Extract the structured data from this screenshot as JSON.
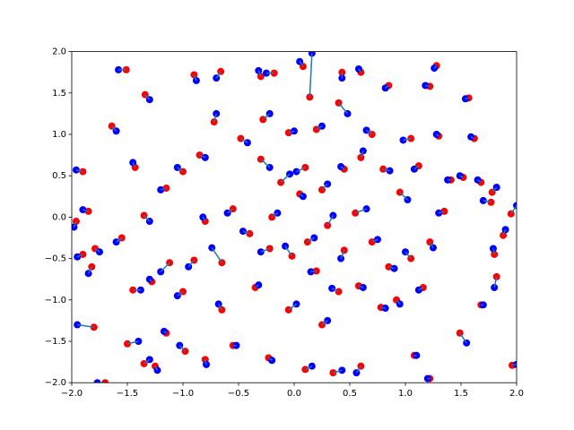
{
  "chart_data": {
    "type": "scatter",
    "xlim": [
      -2,
      2
    ],
    "ylim": [
      -2,
      2
    ],
    "xticks": [
      {
        "value": -2,
        "label": "−2.0"
      },
      {
        "value": -1.5,
        "label": "−1.5"
      },
      {
        "value": -1,
        "label": "−1.0"
      },
      {
        "value": -0.5,
        "label": "−0.5"
      },
      {
        "value": 0,
        "label": "0.0"
      },
      {
        "value": 0.5,
        "label": "0.5"
      },
      {
        "value": 1,
        "label": "1.0"
      },
      {
        "value": 1.5,
        "label": "1.5"
      },
      {
        "value": 2,
        "label": "2.0"
      }
    ],
    "yticks": [
      {
        "value": -2,
        "label": "−2.0"
      },
      {
        "value": -1.5,
        "label": "−1.5"
      },
      {
        "value": -1,
        "label": "−1.0"
      },
      {
        "value": -0.5,
        "label": "−0.5"
      },
      {
        "value": 0,
        "label": "0.0"
      },
      {
        "value": 0.5,
        "label": "0.5"
      },
      {
        "value": 1,
        "label": "1.0"
      },
      {
        "value": 1.5,
        "label": "1.5"
      },
      {
        "value": 2,
        "label": "2.0"
      }
    ],
    "grid": false,
    "pair_lines": true,
    "pair_line_color": "#1f77b4",
    "series": [
      {
        "color": "#ff0000",
        "x": [
          -1.51,
          -1.34,
          -0.9,
          -0.66,
          -0.3,
          -0.18,
          0.08,
          0.14,
          0.43,
          0.6,
          0.85,
          1.28,
          1.22,
          1.57,
          -1.64,
          -1.43,
          -1.9,
          -1.85,
          -1.96,
          -1.79,
          -1.9,
          -1.82,
          -1.8,
          -1.7,
          -1.5,
          -1.35,
          -1.25,
          -1.15,
          -0.98,
          -0.8,
          -0.55,
          -0.23,
          0.1,
          0.35,
          0.6,
          1.08,
          1.22,
          1.49,
          1.96,
          1.68,
          1.82,
          1.8,
          1.88,
          1.95,
          1.77,
          1.78,
          1.68,
          1.62,
          1.52,
          1.41,
          1.35,
          1.22,
          1.05,
          1.16,
          0.92,
          0.78,
          0.58,
          0.4,
          0.2,
          -0.02,
          -0.22,
          -0.4,
          -0.65,
          -0.9,
          -1.12,
          -1.28,
          -1.45,
          -1.55,
          -1.35,
          -1.15,
          -1.0,
          -0.85,
          -0.72,
          -0.48,
          -0.3,
          -0.12,
          0.05,
          0.25,
          0.45,
          0.6,
          0.8,
          0.95,
          1.05,
          1.3,
          0.7,
          0.4,
          0.2,
          -0.05,
          -0.28,
          0.1,
          0.3,
          0.55,
          0.7,
          0.45,
          -0.2,
          -0.55,
          -0.8,
          -0.35,
          -0.05,
          0.25,
          -0.65,
          -1.0,
          0.85,
          1.12,
          0.12
        ],
        "y": [
          1.78,
          1.48,
          1.72,
          1.76,
          1.7,
          1.74,
          1.82,
          1.45,
          1.75,
          1.75,
          1.59,
          1.83,
          1.58,
          1.44,
          1.1,
          0.6,
          0.55,
          0.07,
          -0.05,
          -0.38,
          -0.45,
          -0.6,
          -1.33,
          -2.0,
          -1.53,
          -1.77,
          -1.8,
          -1.4,
          -1.62,
          -1.72,
          -1.55,
          -1.7,
          -1.84,
          -1.88,
          -1.8,
          -1.67,
          -1.95,
          -1.4,
          -1.79,
          -1.06,
          -0.72,
          -0.45,
          -0.22,
          0.04,
          0.18,
          0.3,
          0.42,
          0.95,
          0.48,
          0.45,
          0.07,
          -0.3,
          -0.5,
          -0.85,
          -1.0,
          -1.09,
          -0.83,
          -0.9,
          -0.65,
          -0.47,
          -0.38,
          -0.2,
          -0.55,
          -0.52,
          -0.55,
          -0.78,
          -0.88,
          -0.25,
          0.02,
          0.35,
          0.55,
          0.75,
          1.15,
          0.95,
          0.7,
          0.42,
          0.28,
          0.33,
          0.58,
          0.72,
          0.58,
          0.3,
          0.95,
          0.98,
          1.0,
          1.38,
          1.06,
          1.02,
          1.18,
          0.6,
          -0.1,
          0.05,
          -0.3,
          -0.4,
          0.0,
          0.1,
          -0.05,
          -0.85,
          -1.12,
          -1.3,
          -1.12,
          -0.9,
          -0.6,
          0.62,
          -0.3
        ]
      },
      {
        "color": "#0000ff",
        "x": [
          -1.58,
          -1.3,
          -0.88,
          -0.7,
          -0.32,
          -0.25,
          0.05,
          0.16,
          0.43,
          0.58,
          0.82,
          1.26,
          1.18,
          1.54,
          -1.6,
          -1.45,
          -1.96,
          -1.9,
          -1.98,
          -1.75,
          -1.95,
          -1.85,
          -1.95,
          -1.77,
          -1.4,
          -1.3,
          -1.23,
          -1.17,
          -1.03,
          -0.79,
          -0.52,
          -0.2,
          0.16,
          0.43,
          0.56,
          1.1,
          1.2,
          1.55,
          2.0,
          1.7,
          1.8,
          1.79,
          1.9,
          2.0,
          1.7,
          1.82,
          1.65,
          1.59,
          1.49,
          1.38,
          1.3,
          1.25,
          1.0,
          1.12,
          0.95,
          0.82,
          0.62,
          0.34,
          0.15,
          -0.08,
          -0.3,
          -0.46,
          -0.74,
          -0.95,
          -1.2,
          -1.3,
          -1.38,
          -1.6,
          -1.3,
          -1.2,
          -1.05,
          -0.8,
          -0.7,
          -0.42,
          -0.22,
          -0.04,
          0.08,
          0.3,
          0.42,
          0.62,
          0.86,
          1.02,
          0.98,
          1.28,
          0.65,
          0.48,
          0.25,
          0.0,
          -0.22,
          0.02,
          0.35,
          0.65,
          0.75,
          0.42,
          -0.15,
          -0.6,
          -0.82,
          -0.32,
          0.02,
          0.3,
          -0.68,
          -1.05,
          0.9,
          1.08,
          0.18
        ],
        "y": [
          1.78,
          1.42,
          1.65,
          1.68,
          1.77,
          1.74,
          1.88,
          1.98,
          1.68,
          1.79,
          1.56,
          1.8,
          1.59,
          1.43,
          1.04,
          0.66,
          0.57,
          0.09,
          -0.12,
          -0.42,
          -0.48,
          -0.68,
          -1.3,
          -2.0,
          -1.5,
          -1.72,
          -1.85,
          -1.38,
          -1.55,
          -1.78,
          -1.55,
          -1.73,
          -1.8,
          -1.85,
          -1.88,
          -1.67,
          -1.95,
          -1.52,
          -1.78,
          -1.06,
          -0.85,
          -0.38,
          -0.15,
          0.14,
          0.2,
          0.36,
          0.45,
          0.97,
          0.5,
          0.45,
          0.05,
          -0.37,
          -0.42,
          -0.88,
          -1.05,
          -1.1,
          -0.85,
          -0.86,
          -0.66,
          -0.35,
          -0.42,
          -0.17,
          -0.37,
          -0.6,
          -0.66,
          -0.75,
          -0.88,
          -0.3,
          -0.05,
          0.33,
          0.6,
          0.72,
          1.25,
          0.9,
          0.6,
          0.52,
          0.25,
          0.4,
          0.61,
          0.8,
          0.56,
          0.21,
          0.93,
          1.0,
          1.05,
          1.25,
          1.1,
          1.04,
          1.25,
          0.55,
          0.02,
          0.1,
          -0.27,
          -0.5,
          0.05,
          0.05,
          0.0,
          -0.82,
          -1.05,
          -1.25,
          -1.05,
          -0.95,
          -0.62,
          0.58,
          -0.25
        ]
      }
    ]
  }
}
